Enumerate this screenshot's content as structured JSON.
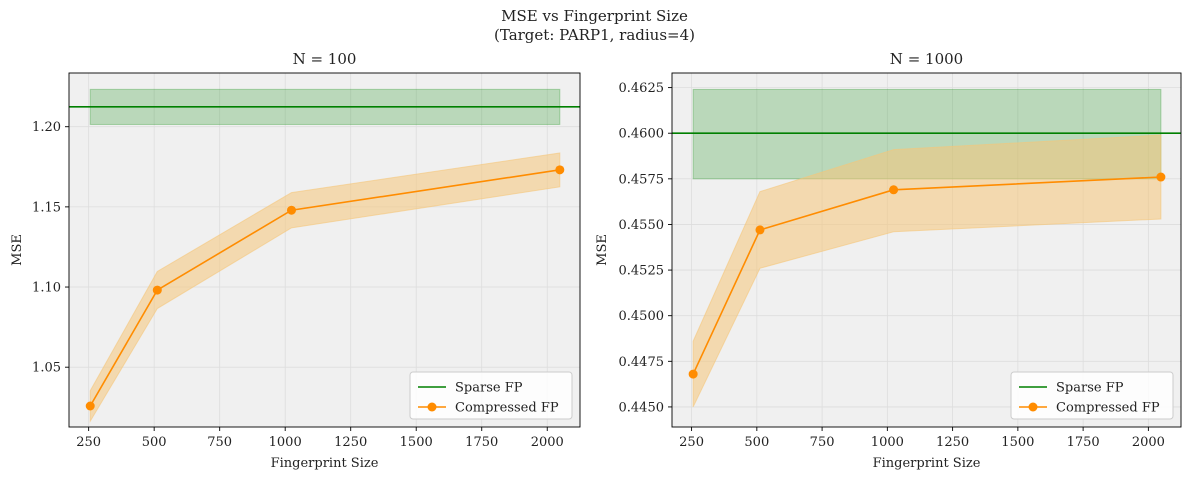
{
  "figure": {
    "title_line1": "MSE vs Fingerprint Size",
    "title_line2": "(Target: PARP1, radius=4)"
  },
  "colors": {
    "sparse_line": "#008000",
    "sparse_band": "#2e9b2e",
    "compressed_line": "#ff8c00",
    "compressed_band": "#f5c77a",
    "plot_bg": "#f0f0f0",
    "grid": "#dddddd",
    "axis": "#000000"
  },
  "chart_data": [
    {
      "type": "line",
      "title": "N = 100",
      "xlabel": "Fingerprint Size",
      "ylabel": "MSE",
      "xlim": [
        175,
        2125
      ],
      "ylim": [
        1.0127,
        1.2335
      ],
      "xticks": [
        250,
        500,
        750,
        1000,
        1250,
        1500,
        1750,
        2000
      ],
      "xtick_labels": [
        "250",
        "500",
        "750",
        "1000",
        "1250",
        "1500",
        "1750",
        "2000"
      ],
      "yticks": [
        1.05,
        1.1,
        1.15,
        1.2
      ],
      "ytick_labels": [
        "1.05",
        "1.10",
        "1.15",
        "1.20"
      ],
      "grid": true,
      "legend_position": "lower right",
      "series": [
        {
          "name": "Sparse FP",
          "kind": "hline",
          "y": 1.2124,
          "band": {
            "x": [
              256,
              2048
            ],
            "lower": 1.2014,
            "upper": 1.2233
          }
        },
        {
          "name": "Compressed FP",
          "kind": "line-marker",
          "x": [
            256,
            512,
            1024,
            2048
          ],
          "y": [
            1.0258,
            1.0981,
            1.1479,
            1.1731
          ],
          "lower": [
            1.0163,
            1.0866,
            1.1369,
            1.1625
          ],
          "upper": [
            1.0353,
            1.1097,
            1.1589,
            1.1836
          ]
        }
      ],
      "legend": [
        {
          "label": "Sparse FP"
        },
        {
          "label": "Compressed FP"
        }
      ]
    },
    {
      "type": "line",
      "title": "N = 1000",
      "xlabel": "Fingerprint Size",
      "ylabel": "MSE",
      "xlim": [
        175,
        2125
      ],
      "ylim": [
        0.4439,
        0.4633
      ],
      "xticks": [
        250,
        500,
        750,
        1000,
        1250,
        1500,
        1750,
        2000
      ],
      "xtick_labels": [
        "250",
        "500",
        "750",
        "1000",
        "1250",
        "1500",
        "1750",
        "2000"
      ],
      "yticks": [
        0.445,
        0.4475,
        0.45,
        0.4525,
        0.455,
        0.4575,
        0.46,
        0.4625
      ],
      "ytick_labels": [
        "0.4450",
        "0.4475",
        "0.4500",
        "0.4525",
        "0.4550",
        "0.4575",
        "0.4600",
        "0.4625"
      ],
      "grid": true,
      "legend_position": "lower right",
      "series": [
        {
          "name": "Sparse FP",
          "kind": "hline",
          "y": 0.46,
          "band": {
            "x": [
              256,
              2048
            ],
            "lower": 0.4575,
            "upper": 0.4624
          }
        },
        {
          "name": "Compressed FP",
          "kind": "line-marker",
          "x": [
            256,
            512,
            1024,
            2048
          ],
          "y": [
            0.4468,
            0.4547,
            0.4569,
            0.4576
          ],
          "lower": [
            0.445,
            0.4526,
            0.4546,
            0.4553
          ],
          "upper": [
            0.4486,
            0.4568,
            0.4591,
            0.4599
          ]
        }
      ],
      "legend": [
        {
          "label": "Sparse FP"
        },
        {
          "label": "Compressed FP"
        }
      ]
    }
  ]
}
